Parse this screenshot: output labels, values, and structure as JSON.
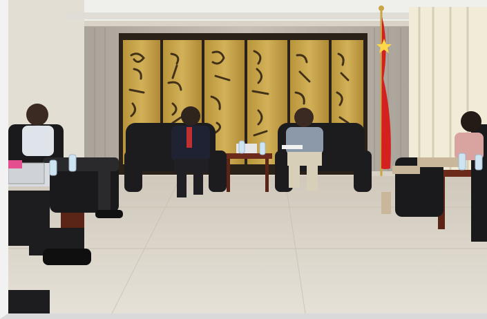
{
  "photo": {
    "scene": "meeting-room",
    "palette": {
      "wall": "#e6e1d6",
      "ceiling": "#efefec",
      "curtain": "#bdb7ad",
      "screen_gold": "#c9a646",
      "screen_frame": "#2a2218",
      "sofa": "#1c1c1e",
      "floor": "#d8d2c7",
      "flag_red": "#d4211f",
      "flag_star": "#ffd84a",
      "table_wood": "#6b2a1a"
    }
  }
}
